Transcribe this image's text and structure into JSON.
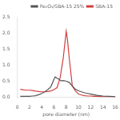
{
  "chart_data": {
    "type": "line",
    "xlabel": "pore diameter (nm)",
    "xlim": [
      0,
      16
    ],
    "ylim": [
      0,
      2.5
    ],
    "xticks": [
      0,
      2,
      4,
      6,
      8,
      10,
      12,
      14,
      16
    ],
    "yticks": [
      {
        "value": 0.0,
        "label": "0.0"
      },
      {
        "value": 0.5,
        "label": "0.5"
      },
      {
        "value": 1.0,
        "label": "1.0"
      },
      {
        "value": 1.5,
        "label": "1.5"
      },
      {
        "value": 2.0,
        "label": "2.0"
      },
      {
        "value": 2.5,
        "label": "2.5"
      }
    ],
    "grid": false,
    "legend": "upper right",
    "series": [
      {
        "name": "Fe₂O₃/SBA-15 25%",
        "color": "#555555",
        "x": [
          0.5,
          1.0,
          1.5,
          2.0,
          2.5,
          3.0,
          3.5,
          4.0,
          4.5,
          5.0,
          5.5,
          6.0,
          6.2,
          6.5,
          6.8,
          7.0,
          7.2,
          7.5,
          8.0,
          8.5,
          9.0,
          9.5,
          10.0,
          10.5,
          11.0,
          11.5,
          12.0,
          12.5,
          13.0,
          14.0,
          15.0,
          16.0
        ],
        "values": [
          0.03,
          0.03,
          0.03,
          0.03,
          0.04,
          0.05,
          0.08,
          0.12,
          0.17,
          0.24,
          0.33,
          0.56,
          0.63,
          0.59,
          0.56,
          0.53,
          0.51,
          0.52,
          0.5,
          0.46,
          0.35,
          0.25,
          0.2,
          0.17,
          0.14,
          0.12,
          0.1,
          0.08,
          0.06,
          0.04,
          0.03,
          0.02
        ]
      },
      {
        "name": "SBA-15",
        "color": "#d04040",
        "x": [
          0.5,
          1.0,
          1.5,
          2.0,
          2.5,
          3.0,
          3.5,
          4.0,
          4.5,
          5.0,
          5.5,
          6.0,
          6.5,
          7.0,
          7.5,
          7.8,
          8.0,
          8.2,
          8.5,
          9.0,
          9.5,
          10.0,
          10.5,
          11.0,
          11.5,
          12.0,
          12.5,
          13.0,
          14.0,
          15.0,
          16.0
        ],
        "values": [
          0.25,
          0.23,
          0.22,
          0.22,
          0.21,
          0.19,
          0.18,
          0.17,
          0.17,
          0.18,
          0.2,
          0.24,
          0.3,
          0.6,
          1.2,
          1.7,
          2.05,
          1.8,
          1.2,
          0.35,
          0.2,
          0.1,
          0.07,
          0.05,
          0.04,
          0.04,
          0.03,
          0.03,
          0.02,
          0.02,
          0.02
        ]
      }
    ]
  }
}
